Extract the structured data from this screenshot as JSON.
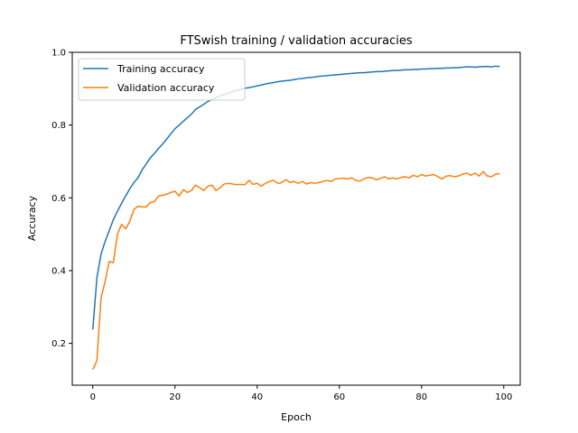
{
  "chart_data": {
    "type": "line",
    "title": "FTSwish training / validation accuracies",
    "xlabel": "Epoch",
    "ylabel": "Accuracy",
    "xlim": [
      -5,
      104
    ],
    "ylim": [
      0.085,
      1.0
    ],
    "xticks": [
      0,
      20,
      40,
      60,
      80,
      100
    ],
    "yticks": [
      0.2,
      0.4,
      0.6,
      0.8,
      1.0
    ],
    "ytick_labels": [
      "0.2",
      "0.4",
      "0.6",
      "0.8",
      "1.0"
    ],
    "grid": false,
    "legend": "top-left",
    "series": [
      {
        "name": "Training accuracy",
        "color": "#1f77b4",
        "x": [
          0,
          1,
          2,
          3,
          4,
          5,
          6,
          7,
          8,
          9,
          10,
          11,
          12,
          13,
          14,
          15,
          16,
          17,
          18,
          19,
          20,
          21,
          22,
          23,
          24,
          25,
          26,
          27,
          28,
          29,
          30,
          31,
          32,
          33,
          34,
          35,
          36,
          37,
          38,
          39,
          40,
          41,
          42,
          43,
          44,
          45,
          46,
          47,
          48,
          49,
          50,
          51,
          52,
          53,
          54,
          55,
          56,
          57,
          58,
          59,
          60,
          61,
          62,
          63,
          64,
          65,
          66,
          67,
          68,
          69,
          70,
          71,
          72,
          73,
          74,
          75,
          76,
          77,
          78,
          79,
          80,
          81,
          82,
          83,
          84,
          85,
          86,
          87,
          88,
          89,
          90,
          91,
          92,
          93,
          94,
          95,
          96,
          97,
          98,
          99
        ],
        "values": [
          0.238,
          0.38,
          0.445,
          0.48,
          0.51,
          0.54,
          0.563,
          0.585,
          0.605,
          0.625,
          0.642,
          0.655,
          0.677,
          0.693,
          0.71,
          0.722,
          0.736,
          0.748,
          0.762,
          0.776,
          0.79,
          0.8,
          0.81,
          0.82,
          0.83,
          0.843,
          0.85,
          0.857,
          0.865,
          0.87,
          0.875,
          0.88,
          0.884,
          0.888,
          0.892,
          0.895,
          0.898,
          0.901,
          0.903,
          0.905,
          0.908,
          0.91,
          0.913,
          0.915,
          0.917,
          0.919,
          0.921,
          0.922,
          0.923,
          0.925,
          0.927,
          0.928,
          0.93,
          0.931,
          0.932,
          0.934,
          0.935,
          0.936,
          0.937,
          0.938,
          0.939,
          0.94,
          0.941,
          0.942,
          0.943,
          0.944,
          0.944,
          0.945,
          0.946,
          0.947,
          0.947,
          0.948,
          0.949,
          0.95,
          0.95,
          0.951,
          0.952,
          0.952,
          0.953,
          0.953,
          0.954,
          0.954,
          0.955,
          0.955,
          0.956,
          0.956,
          0.957,
          0.957,
          0.958,
          0.958,
          0.959,
          0.96,
          0.96,
          0.959,
          0.96,
          0.961,
          0.961,
          0.96,
          0.962,
          0.961
        ]
      },
      {
        "name": "Validation accuracy",
        "color": "#ff7f0e",
        "x": [
          0,
          1,
          2,
          3,
          4,
          5,
          6,
          7,
          8,
          9,
          10,
          11,
          12,
          13,
          14,
          15,
          16,
          17,
          18,
          19,
          20,
          21,
          22,
          23,
          24,
          25,
          26,
          27,
          28,
          29,
          30,
          31,
          32,
          33,
          34,
          35,
          36,
          37,
          38,
          39,
          40,
          41,
          42,
          43,
          44,
          45,
          46,
          47,
          48,
          49,
          50,
          51,
          52,
          53,
          54,
          55,
          56,
          57,
          58,
          59,
          60,
          61,
          62,
          63,
          64,
          65,
          66,
          67,
          68,
          69,
          70,
          71,
          72,
          73,
          74,
          75,
          76,
          77,
          78,
          79,
          80,
          81,
          82,
          83,
          84,
          85,
          86,
          87,
          88,
          89,
          90,
          91,
          92,
          93,
          94,
          95,
          96,
          97,
          98,
          99
        ],
        "values": [
          0.128,
          0.152,
          0.325,
          0.37,
          0.425,
          0.422,
          0.5,
          0.527,
          0.515,
          0.535,
          0.568,
          0.577,
          0.575,
          0.575,
          0.587,
          0.59,
          0.605,
          0.607,
          0.61,
          0.615,
          0.618,
          0.605,
          0.622,
          0.615,
          0.62,
          0.635,
          0.628,
          0.62,
          0.632,
          0.635,
          0.62,
          0.628,
          0.638,
          0.64,
          0.638,
          0.636,
          0.637,
          0.636,
          0.648,
          0.637,
          0.64,
          0.632,
          0.64,
          0.645,
          0.648,
          0.64,
          0.642,
          0.65,
          0.642,
          0.645,
          0.64,
          0.645,
          0.638,
          0.642,
          0.64,
          0.642,
          0.645,
          0.648,
          0.645,
          0.652,
          0.653,
          0.654,
          0.652,
          0.655,
          0.648,
          0.646,
          0.652,
          0.656,
          0.655,
          0.65,
          0.653,
          0.658,
          0.652,
          0.655,
          0.652,
          0.656,
          0.658,
          0.655,
          0.662,
          0.658,
          0.664,
          0.66,
          0.662,
          0.664,
          0.658,
          0.652,
          0.66,
          0.661,
          0.658,
          0.66,
          0.665,
          0.668,
          0.662,
          0.668,
          0.66,
          0.672,
          0.66,
          0.658,
          0.665,
          0.667
        ]
      }
    ]
  }
}
